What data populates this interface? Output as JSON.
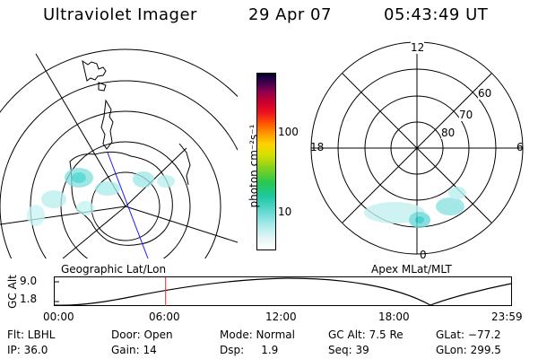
{
  "header": {
    "instrument": "Ultraviolet Imager",
    "date": "29 Apr 07",
    "time": "05:43:49 UT"
  },
  "colorbar": {
    "label": "photon cm⁻²s⁻¹",
    "ticks": [
      "100",
      "10"
    ]
  },
  "panels": {
    "left_caption": "Geographic Lat/Lon",
    "right_caption": "Apex MLat/MLT",
    "mlt_labels": [
      "12",
      "18",
      "6",
      "0"
    ],
    "mlat_labels": [
      "60",
      "70",
      "80"
    ]
  },
  "altitude_plot": {
    "ylabel": "GC Alt",
    "yticks": [
      "9.0",
      "1.8"
    ],
    "xticks": [
      "00:00",
      "06:00",
      "12:00",
      "18:00",
      "23:59"
    ],
    "current_time_fraction": 0.243
  },
  "info": {
    "filter": "Flt: LBHL",
    "ip": "IP: 36.0",
    "door": "Door: Open",
    "gain": "Gain: 14",
    "mode": "Mode: Normal",
    "dsp": "Dsp:     1.9",
    "gc_alt": "GC Alt: 7.5 Re",
    "seq": "Seq: 39",
    "glat": "GLat: −77.2",
    "glon": "GLon: 299.5"
  }
}
